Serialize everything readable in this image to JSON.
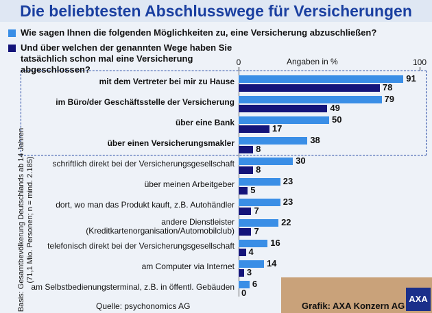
{
  "chart_data": {
    "type": "bar",
    "orientation": "horizontal",
    "title": "Die beliebtesten Abschlusswege für Versicherungen",
    "x_label": "Angaben in %",
    "categories": [
      "mit dem Vertreter bei mir zu Hause",
      "im Büro/der Geschäftsstelle der Versicherung",
      "über eine Bank",
      "über einen Versicherungsmakler",
      "schriftlich direkt bei der Versicherungsgesellschaft",
      "über meinen Arbeitgeber",
      "dort, wo man das Produkt kauft, z.B. Autohändler",
      "andere Dienstleister\n(Kreditkartenorganisation/Automobilclub)",
      "telefonisch direkt bei der Versicherungsgesellschaft",
      "am Computer via Internet",
      "am Selbstbedienungsterminal, z.B. in öffentl. Gebäuden"
    ],
    "series": [
      {
        "name": "Wie sagen Ihnen die folgenden Möglichkeiten zu, eine Versicherung abzuschließen?",
        "color": "#3a8ee6",
        "values": [
          91,
          79,
          50,
          38,
          30,
          23,
          23,
          22,
          16,
          14,
          6
        ]
      },
      {
        "name": "Und über welchen der genannten Wege haben Sie tatsächlich schon mal eine Versicherung abgeschlossen?",
        "color": "#14147a",
        "values": [
          78,
          49,
          17,
          8,
          8,
          5,
          7,
          7,
          4,
          3,
          0
        ]
      }
    ],
    "xlim": [
      0,
      100
    ],
    "xticks": [
      0,
      100
    ],
    "base_note": "Basis: Gesamtbevölkerung Deutschlands ab 14 Jahren\n(71,1 Mio. Personen; n = mind. 2.185)",
    "source": "Quelle: psychonomics AG",
    "credit": "Grafik: AXA Konzern AG",
    "logo": "AXA"
  }
}
